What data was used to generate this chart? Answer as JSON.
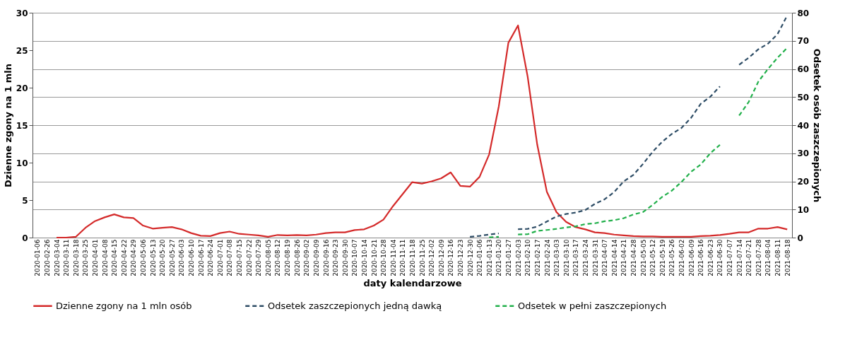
{
  "chart_data": {
    "type": "line",
    "xlabel": "daty kalendarzowe",
    "ylabel": "Dzienne zgony na 1 mln",
    "y2label": "Odsetek osób zaszczepionych",
    "categories": [
      "2020-01-06",
      "2020-02-26",
      "2020-03-04",
      "2020-03-11",
      "2020-03-18",
      "2020-03-25",
      "2020-04-01",
      "2020-04-08",
      "2020-04-15",
      "2020-04-22",
      "2020-04-29",
      "2020-05-06",
      "2020-05-13",
      "2020-05-20",
      "2020-05-27",
      "2020-06-03",
      "2020-06-10",
      "2020-06-17",
      "2020-06-24",
      "2020-07-01",
      "2020-07-08",
      "2020-07-15",
      "2020-07-22",
      "2020-07-29",
      "2020-08-05",
      "2020-08-12",
      "2020-08-19",
      "2020-08-26",
      "2020-09-02",
      "2020-09-09",
      "2020-09-16",
      "2020-09-23",
      "2020-09-30",
      "2020-10-07",
      "2020-10-14",
      "2020-10-21",
      "2020-10-28",
      "2020-11-04",
      "2020-11-11",
      "2020-11-18",
      "2020-11-25",
      "2020-12-02",
      "2020-12-09",
      "2020-12-16",
      "2020-12-23",
      "2020-12-30",
      "2021-01-06",
      "2021-01-13",
      "2021-01-20",
      "2021-01-27",
      "2021-02-03",
      "2021-02-10",
      "2021-02-17",
      "2021-02-24",
      "2021-03-03",
      "2021-03-10",
      "2021-03-17",
      "2021-03-24",
      "2021-03-31",
      "2021-04-07",
      "2021-04-14",
      "2021-04-21",
      "2021-04-28",
      "2021-05-05",
      "2021-05-12",
      "2021-05-19",
      "2021-05-26",
      "2021-06-02",
      "2021-06-09",
      "2021-06-16",
      "2021-06-23",
      "2021-06-30",
      "2021-07-07",
      "2021-07-14",
      "2021-07-21",
      "2021-07-28",
      "2021-08-04",
      "2021-08-11",
      "2021-08-18"
    ],
    "series": [
      {
        "name": "Dzienne zgony na 1 mln osób",
        "color": "#d42a2a",
        "line_style": "solid",
        "values": [
          null,
          null,
          0,
          0,
          0.1,
          1.3,
          2.2,
          2.7,
          3.1,
          2.7,
          2.6,
          1.6,
          1.2,
          1.3,
          1.4,
          1.1,
          0.6,
          0.25,
          0.2,
          0.6,
          0.8,
          0.5,
          0.4,
          0.3,
          0.1,
          0.35,
          0.3,
          0.35,
          0.3,
          0.4,
          0.6,
          0.7,
          0.7,
          1.0,
          1.1,
          1.6,
          2.4,
          4.2,
          5.8,
          7.4,
          7.2,
          7.5,
          7.9,
          8.7,
          6.9,
          6.8,
          8.1,
          11.1,
          17.5,
          26,
          28.3,
          21.5,
          12.4,
          6.1,
          3.4,
          2.1,
          1.4,
          1.1,
          0.7,
          0.6,
          0.4,
          0.3,
          0.2,
          0.15,
          0.15,
          0.1,
          0.1,
          0.1,
          0.1,
          0.2,
          0.25,
          0.35,
          0.5,
          0.7,
          0.7,
          1.2,
          1.2,
          1.4,
          1.1
        ]
      },
      {
        "name": "Odsetek zaszczepionych jedną dawką",
        "color": "#2e4d66",
        "line_style": "dashed",
        "axis": "y2",
        "values": [
          null,
          null,
          null,
          null,
          null,
          null,
          null,
          null,
          null,
          null,
          null,
          null,
          null,
          null,
          null,
          null,
          null,
          null,
          null,
          null,
          null,
          null,
          null,
          null,
          null,
          null,
          null,
          null,
          null,
          null,
          null,
          null,
          null,
          null,
          null,
          null,
          null,
          null,
          null,
          null,
          null,
          null,
          null,
          null,
          null,
          0.3,
          0.6,
          1.1,
          1.5,
          null,
          3.0,
          3.1,
          3.9,
          5.7,
          7.5,
          8.4,
          8.9,
          9.8,
          12,
          13.6,
          16.2,
          20,
          22.3,
          26.2,
          30.5,
          34.1,
          36.9,
          39,
          42.6,
          47.6,
          50.1,
          53.8,
          null,
          61.5,
          64,
          67,
          69,
          72.4,
          79
        ]
      },
      {
        "name": "Odsetek w pełni zaszczepionych",
        "color": "#22b04b",
        "line_style": "dashed",
        "axis": "y2",
        "values": [
          null,
          null,
          null,
          null,
          null,
          null,
          null,
          null,
          null,
          null,
          null,
          null,
          null,
          null,
          null,
          null,
          null,
          null,
          null,
          null,
          null,
          null,
          null,
          null,
          null,
          null,
          null,
          null,
          null,
          null,
          null,
          null,
          null,
          null,
          null,
          null,
          null,
          null,
          null,
          null,
          null,
          null,
          null,
          null,
          null,
          null,
          null,
          0.1,
          0.3,
          null,
          1.1,
          1.2,
          2.4,
          2.7,
          3.1,
          3.6,
          4.0,
          4.8,
          5.1,
          5.8,
          6.2,
          6.9,
          8.2,
          9.1,
          11.6,
          14.5,
          16.7,
          19.8,
          23.4,
          26,
          30,
          33,
          null,
          43.4,
          48.3,
          55.5,
          60,
          64,
          67.5
        ]
      }
    ],
    "ylim": [
      0,
      30
    ],
    "yticks": [
      0,
      5,
      10,
      15,
      20,
      25,
      30
    ],
    "y2lim": [
      0,
      80
    ],
    "y2ticks": [
      0,
      10,
      20,
      30,
      40,
      50,
      60,
      70,
      80
    ],
    "grid": "y2",
    "legend": "bottom"
  }
}
